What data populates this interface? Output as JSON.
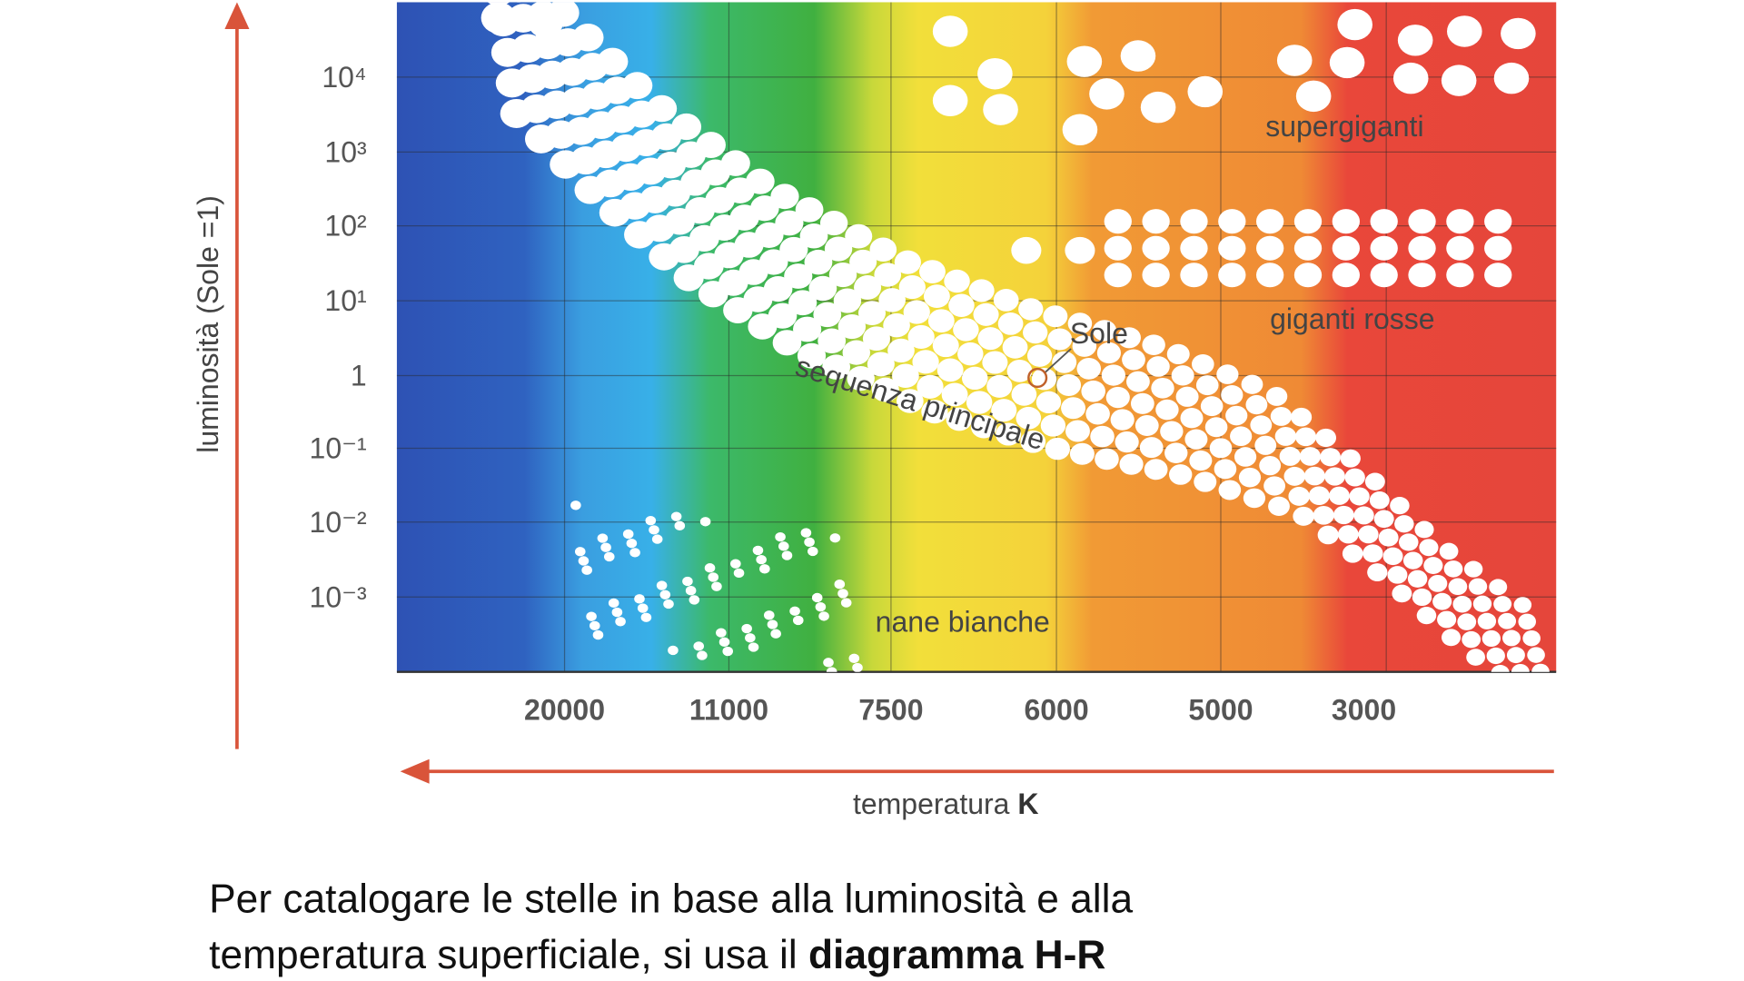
{
  "diagram": {
    "y_axis_label": "luminosità (Sole =1)",
    "y_ticks": [
      "10⁴",
      "10³",
      "10²",
      "10¹",
      "1",
      "10⁻¹",
      "10⁻²",
      "10⁻³"
    ],
    "x_ticks": [
      "20000",
      "11000",
      "7500",
      "6000",
      "5000",
      "3000"
    ],
    "x_axis_label": "temperatura",
    "x_axis_unit": "K",
    "regions": {
      "supergiants": "supergiganti",
      "red_giants": "giganti rosse",
      "sun": "Sole",
      "main_sequence": "sequenza principale",
      "white_dwarfs": "nane bianche"
    }
  },
  "caption": {
    "line1": "Per catalogare le stelle in base alla luminosità e alla",
    "line2": "temperatura superficiale, si usa il",
    "bold": "diagramma H-R"
  }
}
